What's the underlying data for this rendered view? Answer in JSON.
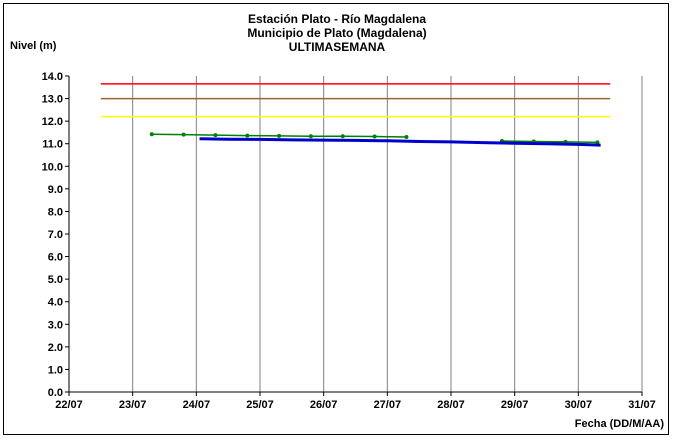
{
  "chart_data": {
    "type": "line",
    "title": [
      "Estación Plato - Río Magdalena",
      "Municipio de Plato (Magdalena)",
      "ULTIMASEMANA"
    ],
    "ylabel": "Nivel (m)",
    "xlabel": "Fecha (DD/M/AA)",
    "ylim": [
      0,
      14
    ],
    "yticks": [
      "0.0",
      "1.0",
      "2.0",
      "3.0",
      "4.0",
      "5.0",
      "6.0",
      "7.0",
      "8.0",
      "9.0",
      "10.0",
      "11.0",
      "12.0",
      "13.0",
      "14.0"
    ],
    "xlim": [
      0,
      9
    ],
    "xticks": [
      "22/07",
      "23/07",
      "24/07",
      "25/07",
      "26/07",
      "27/07",
      "28/07",
      "29/07",
      "30/07",
      "31/07"
    ],
    "grid": "vertical",
    "thresholds": [
      {
        "value": 13.65,
        "x_range": [
          0.5,
          8.5
        ],
        "color": "#ff0000"
      },
      {
        "value": 13.0,
        "x_range": [
          0.5,
          8.5
        ],
        "color": "#996633"
      },
      {
        "value": 12.2,
        "x_range": [
          0.5,
          8.5
        ],
        "color": "#ffff00"
      }
    ],
    "series": [
      {
        "color": "#008000",
        "marker": true,
        "segments": [
          {
            "x": [
              1.3,
              1.8,
              2.3,
              2.8,
              3.3,
              3.8,
              4.3,
              4.8,
              5.3
            ],
            "y": [
              11.42,
              11.4,
              11.38,
              11.36,
              11.35,
              11.33,
              11.33,
              11.32,
              11.3
            ]
          },
          {
            "x": [
              6.8,
              7.3,
              7.8,
              8.3
            ],
            "y": [
              11.12,
              11.1,
              11.08,
              11.06
            ]
          }
        ]
      },
      {
        "color": "#0000cc",
        "marker": false,
        "segments": [
          {
            "x": [
              2.05,
              2.5,
              3.0,
              3.5,
              4.0,
              4.5,
              5.0,
              5.5,
              6.0,
              6.5,
              7.0,
              7.5,
              8.0,
              8.35
            ],
            "y": [
              11.22,
              11.2,
              11.19,
              11.17,
              11.16,
              11.15,
              11.13,
              11.1,
              11.08,
              11.05,
              11.02,
              11.0,
              10.97,
              10.94
            ]
          }
        ]
      }
    ]
  }
}
